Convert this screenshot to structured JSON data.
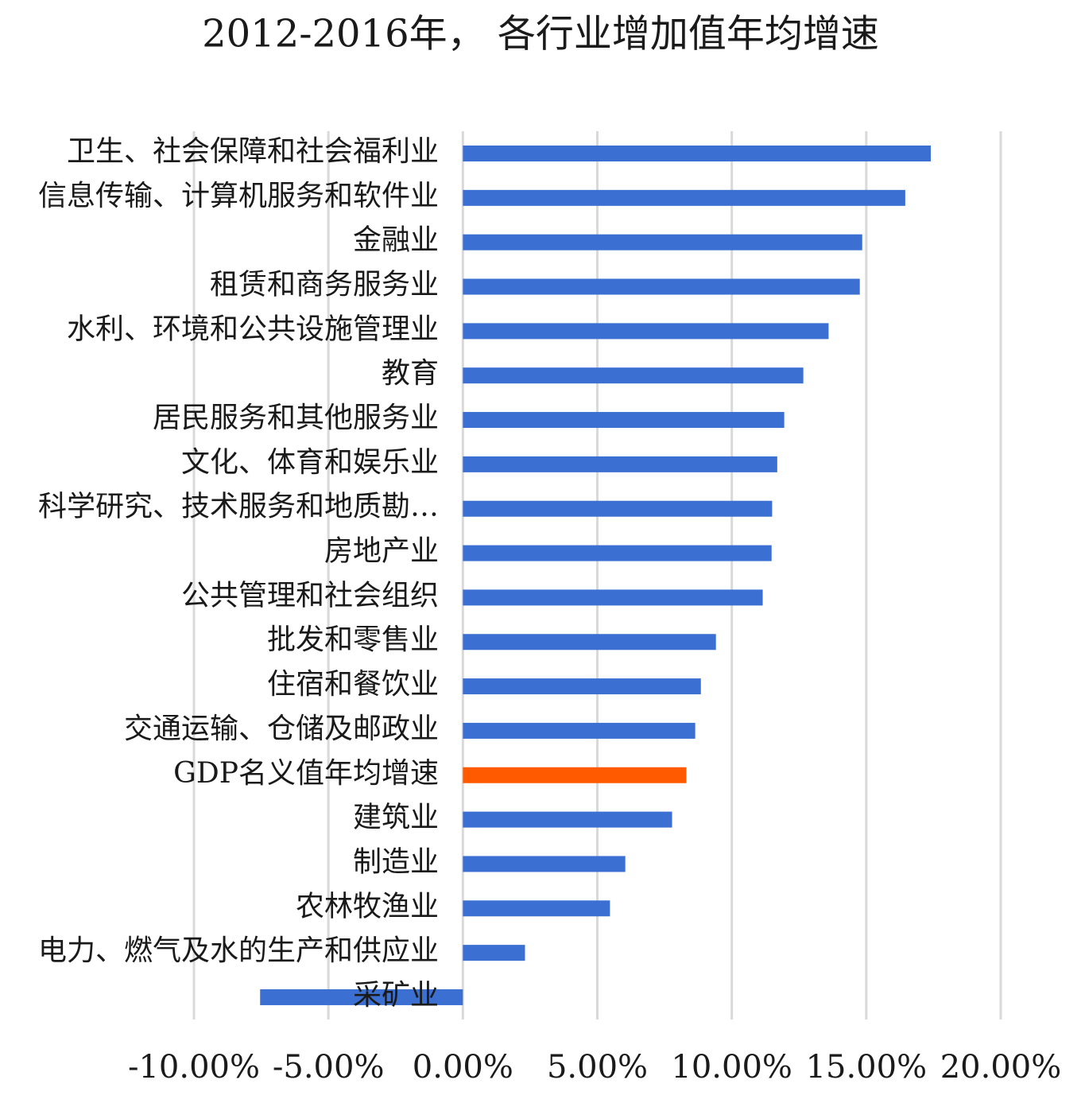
{
  "chart_data": {
    "type": "hbar",
    "title": "2012-2016年， 各行业增加值年均增速",
    "categories": [
      "卫生、社会保障和社会福利业",
      "信息传输、计算机服务和软件业",
      "金融业",
      "租赁和商务服务业",
      "水利、环境和公共设施管理业",
      "教育",
      "居民服务和其他服务业",
      "文化、体育和娱乐业",
      "科学研究、技术服务和地质勘…",
      "房地产业",
      "公共管理和社会组织",
      "批发和零售业",
      "住宿和餐饮业",
      "交通运输、仓储及邮政业",
      "GDP名义值年均增速",
      "建筑业",
      "制造业",
      "农林牧渔业",
      "电力、燃气及水的生产和供应业",
      "采矿业"
    ],
    "values": [
      17.4,
      16.45,
      14.85,
      14.76,
      13.6,
      12.66,
      11.95,
      11.69,
      11.5,
      11.48,
      11.15,
      9.41,
      8.85,
      8.64,
      8.31,
      7.78,
      6.04,
      5.47,
      2.31,
      -7.54
    ],
    "colors": [
      "#3b70d2",
      "#3b70d2",
      "#3b70d2",
      "#3b70d2",
      "#3b70d2",
      "#3b70d2",
      "#3b70d2",
      "#3b70d2",
      "#3b70d2",
      "#3b70d2",
      "#3b70d2",
      "#3b70d2",
      "#3b70d2",
      "#3b70d2",
      "#ff5a00",
      "#3b70d2",
      "#3b70d2",
      "#3b70d2",
      "#3b70d2",
      "#3b70d2"
    ],
    "xlim": [
      -10,
      20
    ],
    "xticks": [
      {
        "value": -10,
        "label": "-10.00%"
      },
      {
        "value": -5,
        "label": "-5.00%"
      },
      {
        "value": 0,
        "label": "0.00%"
      },
      {
        "value": 5,
        "label": "5.00%"
      },
      {
        "value": 10,
        "label": "10.00%"
      },
      {
        "value": 15,
        "label": "15.00%"
      },
      {
        "value": 20,
        "label": "20.00%"
      }
    ],
    "grid": true
  }
}
